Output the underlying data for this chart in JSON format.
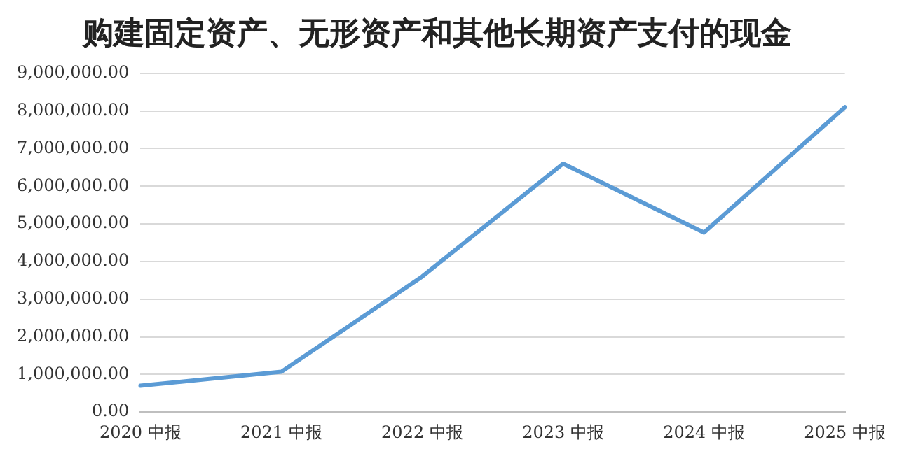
{
  "chart_data": {
    "type": "line",
    "title": "购建固定资产、无形资产和其他长期资产支付的现金",
    "categories": [
      "2020 中报",
      "2021 中报",
      "2022 中报",
      "2023 中报",
      "2024 中报",
      "2025 中报"
    ],
    "series": [
      {
        "color": "#5b9bd5",
        "values": [
          700000,
          1070000,
          3600000,
          6600000,
          4770000,
          8100000
        ]
      }
    ],
    "ylim": [
      0,
      9000000
    ],
    "yticks": [
      {
        "value": 0,
        "label": "0.00"
      },
      {
        "value": 1000000,
        "label": "1,000,000.00"
      },
      {
        "value": 2000000,
        "label": "2,000,000.00"
      },
      {
        "value": 3000000,
        "label": "3,000,000.00"
      },
      {
        "value": 4000000,
        "label": "4,000,000.00"
      },
      {
        "value": 5000000,
        "label": "5,000,000.00"
      },
      {
        "value": 6000000,
        "label": "6,000,000.00"
      },
      {
        "value": 7000000,
        "label": "7,000,000.00"
      },
      {
        "value": 8000000,
        "label": "8,000,000.00"
      },
      {
        "value": 9000000,
        "label": "9,000,000.00"
      }
    ],
    "grid": "y",
    "legend": false,
    "marker": "none",
    "line_style": "solid"
  }
}
